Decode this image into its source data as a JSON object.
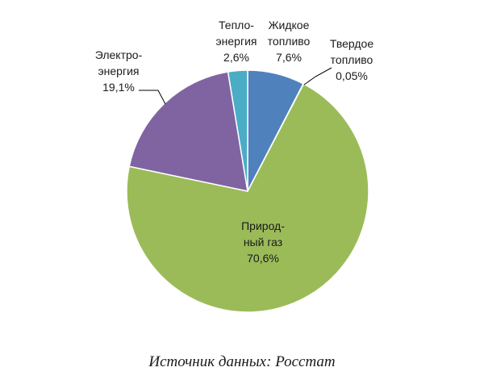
{
  "chart_data": {
    "type": "pie",
    "start_angle_deg": 0,
    "direction": "clockwise",
    "slices": [
      {
        "label_lines": [
          "Жидкое",
          "топливо",
          "7,6%"
        ],
        "value": 7.6,
        "color": "#4f81bd"
      },
      {
        "label_lines": [
          "Твердое",
          "топливо",
          "0,05%"
        ],
        "value": 0.05,
        "color": "#4f81bd"
      },
      {
        "label_lines": [
          "Природ-",
          "ный газ",
          "70,6%"
        ],
        "value": 70.6,
        "color": "#9bbb59"
      },
      {
        "label_lines": [
          "Электро-",
          "энергия",
          "19,1%"
        ],
        "value": 19.1,
        "color": "#8064a2"
      },
      {
        "label_lines": [
          "Тепло-",
          "энергия",
          "2,6%"
        ],
        "value": 2.6,
        "color": "#4bacc6"
      }
    ]
  },
  "source": "Источник данных: Росстат"
}
